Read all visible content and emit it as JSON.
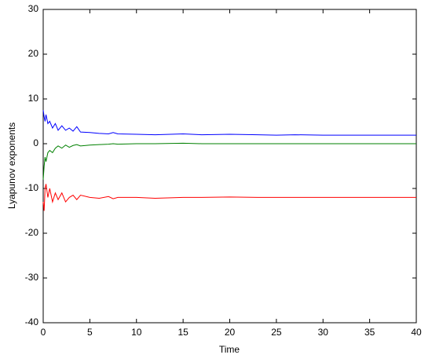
{
  "chart_data": {
    "type": "line",
    "xlabel": "Time",
    "ylabel": "Lyapunov exponents",
    "x": [
      0,
      0.1,
      0.2,
      0.3,
      0.5,
      0.7,
      1,
      1.3,
      1.6,
      2,
      2.4,
      2.8,
      3.2,
      3.6,
      4,
      5,
      6,
      7,
      7.5,
      8,
      10,
      12,
      15,
      17,
      20,
      23,
      25,
      27,
      30,
      35,
      40
    ],
    "series": [
      {
        "color": "#0000ff",
        "values": [
          7.5,
          6,
          5,
          6.5,
          4.5,
          5,
          3.5,
          4.5,
          3,
          4,
          3,
          3.5,
          2.8,
          3.8,
          2.6,
          2.5,
          2.3,
          2.2,
          2.5,
          2.2,
          2.1,
          2.0,
          2.2,
          2.0,
          2.1,
          2.0,
          1.9,
          2.0,
          1.9,
          1.9,
          1.9
        ]
      },
      {
        "color": "#008000",
        "values": [
          -8,
          -5,
          -3,
          -4,
          -2,
          -1.5,
          -2,
          -1,
          -0.5,
          -1,
          -0.3,
          -0.8,
          -0.4,
          -0.2,
          -0.5,
          -0.3,
          -0.2,
          -0.1,
          0,
          -0.1,
          0,
          0,
          0.1,
          0,
          0,
          0,
          0,
          0,
          0,
          0,
          0
        ]
      },
      {
        "color": "#ff0000",
        "values": [
          -13,
          -15,
          -10,
          -9,
          -12,
          -10,
          -13,
          -11,
          -12.5,
          -11,
          -13,
          -12,
          -11.5,
          -12.5,
          -11.5,
          -12,
          -12.2,
          -11.8,
          -12.3,
          -12,
          -12,
          -12.2,
          -12,
          -12,
          -11.9,
          -12,
          -12,
          -12,
          -12,
          -12,
          -12
        ]
      }
    ],
    "xlim": [
      0,
      40
    ],
    "xticks": [
      0,
      5,
      10,
      15,
      20,
      25,
      30,
      35,
      40
    ],
    "ylim": [
      -40,
      30
    ],
    "yticks": [
      -40,
      -30,
      -20,
      -10,
      0,
      10,
      20,
      30
    ],
    "grid": false
  }
}
